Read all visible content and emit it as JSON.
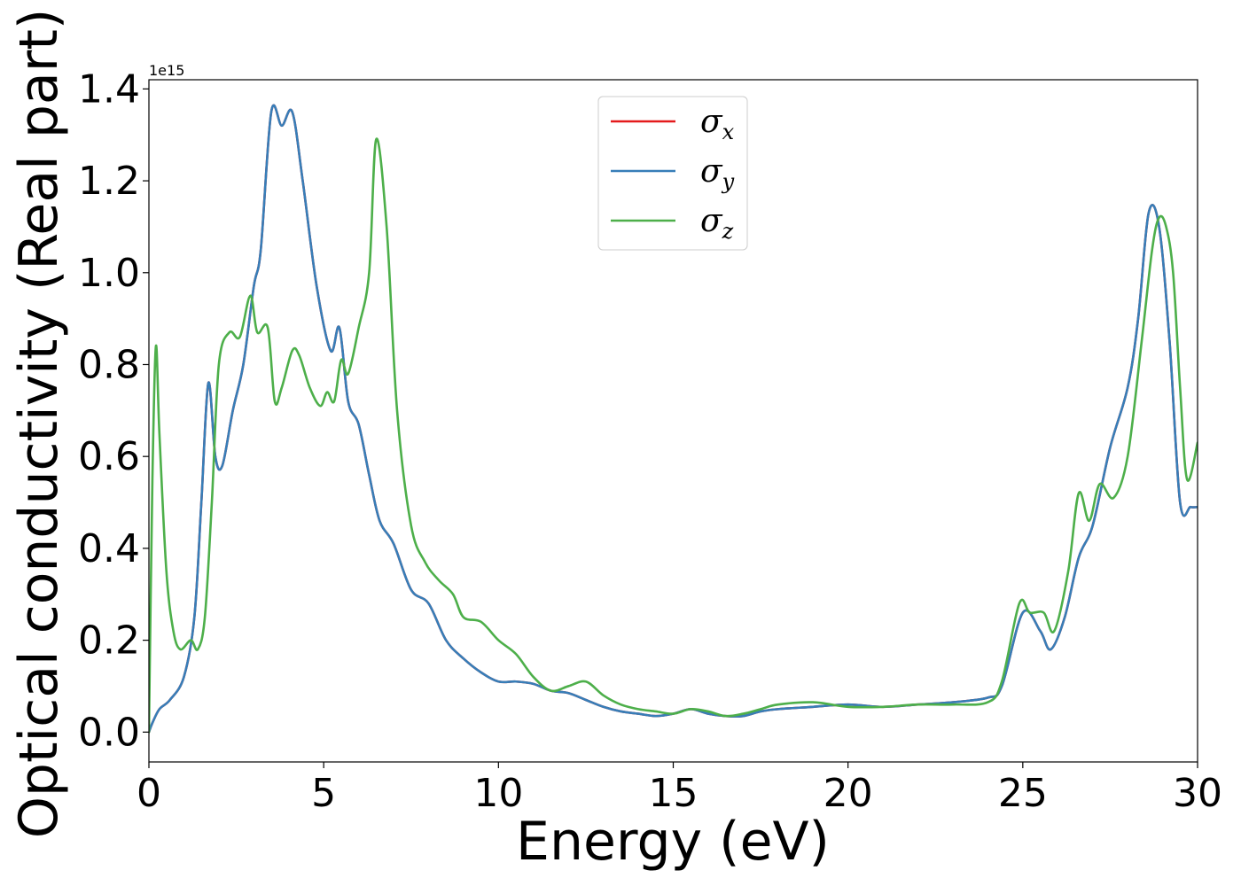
{
  "chart_data": {
    "type": "line",
    "title": "",
    "xlabel": "Energy (eV)",
    "ylabel": "Optical conductivity (Real part)",
    "y_offset_label": "1e15",
    "xlim": [
      0,
      30
    ],
    "ylim": [
      -0.065,
      1.42
    ],
    "xticks": [
      0,
      5,
      10,
      15,
      20,
      25,
      30
    ],
    "yticks": [
      0.0,
      0.2,
      0.4,
      0.6,
      0.8,
      1.0,
      1.2,
      1.4
    ],
    "xtick_labels": [
      "0",
      "5",
      "10",
      "15",
      "20",
      "25",
      "30"
    ],
    "ytick_labels": [
      "0.0",
      "0.2",
      "0.4",
      "0.6",
      "0.8",
      "1.0",
      "1.2",
      "1.4"
    ],
    "grid": false,
    "legend_position": "top-center",
    "series": [
      {
        "name": "σx",
        "symbol": "σ",
        "subscript": "x",
        "color": "#e41a1c",
        "x": [
          0,
          0.1,
          0.3,
          0.6,
          1.0,
          1.3,
          1.5,
          1.7,
          1.9,
          2.1,
          2.4,
          2.7,
          3.0,
          3.2,
          3.5,
          3.8,
          4.1,
          4.4,
          4.8,
          5.2,
          5.45,
          5.7,
          6.0,
          6.3,
          6.6,
          7.0,
          7.5,
          8.0,
          8.5,
          9.0,
          9.5,
          10.0,
          10.5,
          11.0,
          11.5,
          12.0,
          12.5,
          13.0,
          13.5,
          14.0,
          14.5,
          15.0,
          15.5,
          16.0,
          16.5,
          17.0,
          17.5,
          18.0,
          19.0,
          20.0,
          21.0,
          22.0,
          23.0,
          24.0,
          24.4,
          25.0,
          25.5,
          25.8,
          26.2,
          26.6,
          27.0,
          27.5,
          28.0,
          28.3,
          28.6,
          28.9,
          29.2,
          29.5,
          29.8,
          30.0
        ],
        "values": [
          0.0,
          0.02,
          0.05,
          0.07,
          0.12,
          0.25,
          0.5,
          0.76,
          0.6,
          0.58,
          0.7,
          0.8,
          0.97,
          1.05,
          1.35,
          1.32,
          1.35,
          1.2,
          0.97,
          0.83,
          0.88,
          0.72,
          0.67,
          0.56,
          0.46,
          0.41,
          0.31,
          0.28,
          0.2,
          0.16,
          0.13,
          0.11,
          0.11,
          0.105,
          0.09,
          0.085,
          0.07,
          0.055,
          0.045,
          0.04,
          0.035,
          0.04,
          0.05,
          0.04,
          0.035,
          0.035,
          0.045,
          0.05,
          0.055,
          0.06,
          0.055,
          0.06,
          0.065,
          0.075,
          0.1,
          0.26,
          0.22,
          0.18,
          0.25,
          0.38,
          0.45,
          0.62,
          0.75,
          0.9,
          1.13,
          1.1,
          0.85,
          0.5,
          0.49,
          0.49
        ]
      },
      {
        "name": "σy",
        "symbol": "σ",
        "subscript": "y",
        "color": "#377eb8",
        "x": [
          0,
          0.1,
          0.3,
          0.6,
          1.0,
          1.3,
          1.5,
          1.7,
          1.9,
          2.1,
          2.4,
          2.7,
          3.0,
          3.2,
          3.5,
          3.8,
          4.1,
          4.4,
          4.8,
          5.2,
          5.45,
          5.7,
          6.0,
          6.3,
          6.6,
          7.0,
          7.5,
          8.0,
          8.5,
          9.0,
          9.5,
          10.0,
          10.5,
          11.0,
          11.5,
          12.0,
          12.5,
          13.0,
          13.5,
          14.0,
          14.5,
          15.0,
          15.5,
          16.0,
          16.5,
          17.0,
          17.5,
          18.0,
          19.0,
          20.0,
          21.0,
          22.0,
          23.0,
          24.0,
          24.4,
          25.0,
          25.5,
          25.8,
          26.2,
          26.6,
          27.0,
          27.5,
          28.0,
          28.3,
          28.6,
          28.9,
          29.2,
          29.5,
          29.8,
          30.0
        ],
        "values": [
          0.0,
          0.02,
          0.05,
          0.07,
          0.12,
          0.25,
          0.5,
          0.76,
          0.6,
          0.58,
          0.7,
          0.8,
          0.97,
          1.05,
          1.35,
          1.32,
          1.35,
          1.2,
          0.97,
          0.83,
          0.88,
          0.72,
          0.67,
          0.56,
          0.46,
          0.41,
          0.31,
          0.28,
          0.2,
          0.16,
          0.13,
          0.11,
          0.11,
          0.105,
          0.09,
          0.085,
          0.07,
          0.055,
          0.045,
          0.04,
          0.035,
          0.04,
          0.05,
          0.04,
          0.035,
          0.035,
          0.045,
          0.05,
          0.055,
          0.06,
          0.055,
          0.06,
          0.065,
          0.075,
          0.1,
          0.26,
          0.22,
          0.18,
          0.25,
          0.38,
          0.45,
          0.62,
          0.75,
          0.9,
          1.13,
          1.1,
          0.85,
          0.5,
          0.49,
          0.49
        ]
      },
      {
        "name": "σz",
        "symbol": "σ",
        "subscript": "z",
        "color": "#4daf4a",
        "x": [
          0,
          0.1,
          0.2,
          0.3,
          0.5,
          0.7,
          0.9,
          1.2,
          1.4,
          1.6,
          1.8,
          2.0,
          2.3,
          2.6,
          2.9,
          3.1,
          3.4,
          3.6,
          3.8,
          4.1,
          4.3,
          4.6,
          4.9,
          5.1,
          5.3,
          5.5,
          5.7,
          6.0,
          6.3,
          6.5,
          6.8,
          7.1,
          7.5,
          7.9,
          8.3,
          8.7,
          9.0,
          9.5,
          10.0,
          10.5,
          11.0,
          11.5,
          12.0,
          12.5,
          13.0,
          13.5,
          14.0,
          14.5,
          15.0,
          15.5,
          16.0,
          16.5,
          17.0,
          17.5,
          18.0,
          19.0,
          20.0,
          21.0,
          22.0,
          23.0,
          24.0,
          24.4,
          24.9,
          25.2,
          25.6,
          25.9,
          26.3,
          26.6,
          26.9,
          27.2,
          27.6,
          28.0,
          28.4,
          28.7,
          28.9,
          29.1,
          29.3,
          29.5,
          29.7,
          30.0
        ],
        "values": [
          0.0,
          0.55,
          0.84,
          0.65,
          0.35,
          0.22,
          0.18,
          0.2,
          0.18,
          0.25,
          0.5,
          0.8,
          0.87,
          0.86,
          0.95,
          0.87,
          0.88,
          0.72,
          0.75,
          0.83,
          0.82,
          0.75,
          0.71,
          0.74,
          0.72,
          0.81,
          0.78,
          0.88,
          1.0,
          1.29,
          1.1,
          0.7,
          0.45,
          0.37,
          0.33,
          0.3,
          0.25,
          0.24,
          0.2,
          0.17,
          0.12,
          0.09,
          0.1,
          0.11,
          0.08,
          0.06,
          0.05,
          0.045,
          0.04,
          0.05,
          0.045,
          0.035,
          0.04,
          0.05,
          0.06,
          0.065,
          0.055,
          0.055,
          0.06,
          0.06,
          0.065,
          0.11,
          0.28,
          0.26,
          0.26,
          0.22,
          0.35,
          0.52,
          0.46,
          0.54,
          0.51,
          0.6,
          0.85,
          1.05,
          1.12,
          1.1,
          1.0,
          0.75,
          0.55,
          0.63
        ]
      }
    ]
  }
}
